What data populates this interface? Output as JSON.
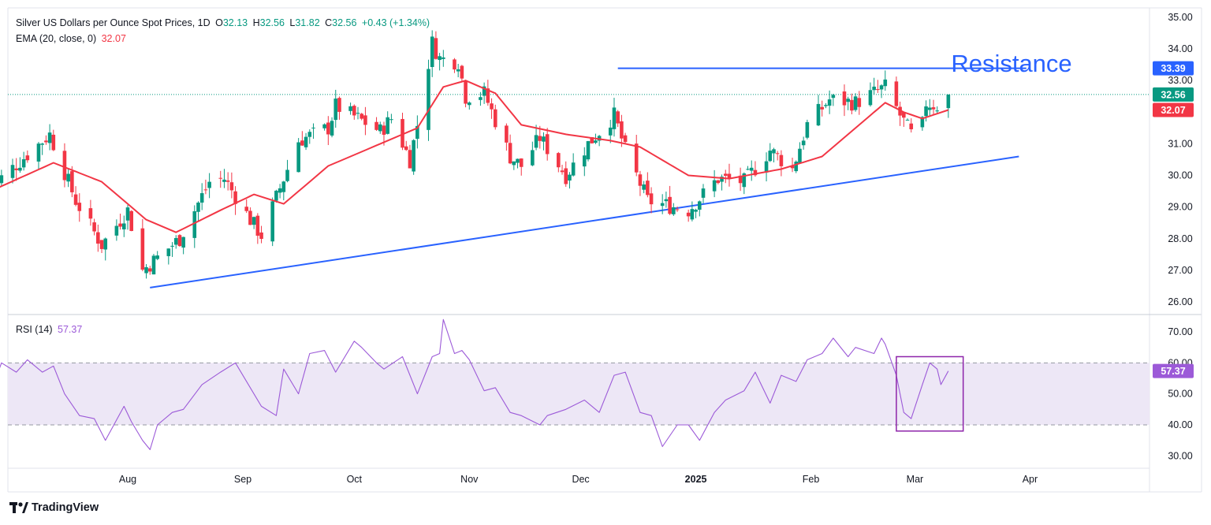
{
  "header": {
    "symbol": "Silver US Dollars per Ounce Spot Prices, 1D",
    "o_label": "O",
    "o_value": "32.13",
    "h_label": "H",
    "h_value": "32.56",
    "l_label": "L",
    "l_value": "31.82",
    "c_label": "C",
    "c_value": "32.56",
    "change": "+0.43 (+1.34%)",
    "ema_label": "EMA (20, close, 0)",
    "ema_value": "32.07",
    "rsi_label": "RSI (14)",
    "rsi_value": "57.37"
  },
  "annotation": "Resistance",
  "brand": "TradingView",
  "colors": {
    "up": "#089981",
    "down": "#f23645",
    "ema": "#f23645",
    "rsi": "#9c5ad8",
    "trendline": "#2962ff",
    "rsi_band": "#ede7f6"
  },
  "chart_data": [
    {
      "type": "candlestick",
      "title": "Silver US Dollars per Ounce Spot Prices, 1D",
      "ylim": [
        25.6,
        35.3
      ],
      "y_ticks": [
        "35.00",
        "34.00",
        "33.00",
        "32.00",
        "31.00",
        "30.00",
        "29.00",
        "28.00",
        "27.00",
        "26.00"
      ],
      "x_ticks": [
        {
          "label": "Aug",
          "date": "2024-08-01"
        },
        {
          "label": "Sep",
          "date": "2024-09-01"
        },
        {
          "label": "Oct",
          "date": "2024-10-01"
        },
        {
          "label": "Nov",
          "date": "2024-11-01"
        },
        {
          "label": "Dec",
          "date": "2024-12-01"
        },
        {
          "label": "2025",
          "date": "2025-01-01",
          "bold": true
        },
        {
          "label": "Feb",
          "date": "2025-02-01"
        },
        {
          "label": "Mar",
          "date": "2025-03-01"
        },
        {
          "label": "Apr",
          "date": "2025-04-01"
        }
      ],
      "price_labels": [
        {
          "text": "33.39",
          "value": 33.39,
          "color": "#2962ff"
        },
        {
          "text": "32.56",
          "value": 32.56,
          "color": "#089981"
        },
        {
          "text": "32.07",
          "value": 32.07,
          "color": "#f23645"
        }
      ],
      "last_close": 32.56,
      "resistance": {
        "from": "2024-12-11",
        "to": "2025-03-31",
        "value": 33.39
      },
      "support_trendline": {
        "from": "2024-08-07",
        "from_value": 26.45,
        "to": "2025-03-29",
        "to_value": 30.6
      },
      "anchors": [
        {
          "date": "2024-06-25",
          "close": 29.6
        },
        {
          "date": "2024-07-11",
          "close": 31.3
        },
        {
          "date": "2024-07-18",
          "close": 29.2
        },
        {
          "date": "2024-07-25",
          "close": 27.8
        },
        {
          "date": "2024-08-01",
          "close": 28.9
        },
        {
          "date": "2024-08-05",
          "close": 27.0
        },
        {
          "date": "2024-08-08",
          "close": 27.3
        },
        {
          "date": "2024-08-15",
          "close": 28.0
        },
        {
          "date": "2024-08-23",
          "close": 29.8
        },
        {
          "date": "2024-08-27",
          "close": 29.9
        },
        {
          "date": "2024-09-03",
          "close": 28.6
        },
        {
          "date": "2024-09-06",
          "close": 28.1
        },
        {
          "date": "2024-09-16",
          "close": 31.1
        },
        {
          "date": "2024-09-24",
          "close": 31.5
        },
        {
          "date": "2024-09-26",
          "close": 32.2
        },
        {
          "date": "2024-10-02",
          "close": 31.8
        },
        {
          "date": "2024-10-08",
          "close": 31.4
        },
        {
          "date": "2024-10-11",
          "close": 31.8
        },
        {
          "date": "2024-10-16",
          "close": 30.5
        },
        {
          "date": "2024-10-18",
          "close": 31.6
        },
        {
          "date": "2024-10-22",
          "close": 34.2
        },
        {
          "date": "2024-10-24",
          "close": 33.7
        },
        {
          "date": "2024-10-29",
          "close": 33.6
        },
        {
          "date": "2024-10-31",
          "close": 32.5
        },
        {
          "date": "2024-11-05",
          "close": 32.6
        },
        {
          "date": "2024-11-12",
          "close": 30.6
        },
        {
          "date": "2024-11-15",
          "close": 30.3
        },
        {
          "date": "2024-11-20",
          "close": 31.2
        },
        {
          "date": "2024-11-27",
          "close": 30.0
        },
        {
          "date": "2024-12-03",
          "close": 31.0
        },
        {
          "date": "2024-12-10",
          "close": 31.9
        },
        {
          "date": "2024-12-13",
          "close": 30.8
        },
        {
          "date": "2024-12-19",
          "close": 29.2
        },
        {
          "date": "2024-12-30",
          "close": 28.9
        },
        {
          "date": "2025-01-07",
          "close": 29.9
        },
        {
          "date": "2025-01-14",
          "close": 29.8
        },
        {
          "date": "2025-01-21",
          "close": 30.8
        },
        {
          "date": "2025-01-27",
          "close": 30.2
        },
        {
          "date": "2025-01-31",
          "close": 31.6
        },
        {
          "date": "2025-02-06",
          "close": 32.4
        },
        {
          "date": "2025-02-13",
          "close": 32.3
        },
        {
          "date": "2025-02-21",
          "close": 32.8
        },
        {
          "date": "2025-02-25",
          "close": 31.9
        },
        {
          "date": "2025-02-28",
          "close": 31.3
        },
        {
          "date": "2025-03-03",
          "close": 31.6
        },
        {
          "date": "2025-03-04",
          "close": 32.3
        },
        {
          "date": "2025-03-07",
          "close": 32.2
        },
        {
          "date": "2025-03-10",
          "close": 32.56
        }
      ],
      "ema_anchors": [
        {
          "date": "2024-06-25",
          "value": 29.5
        },
        {
          "date": "2024-07-12",
          "value": 30.4
        },
        {
          "date": "2024-07-25",
          "value": 29.8
        },
        {
          "date": "2024-08-06",
          "value": 28.6
        },
        {
          "date": "2024-08-14",
          "value": 28.2
        },
        {
          "date": "2024-08-26",
          "value": 28.9
        },
        {
          "date": "2024-09-04",
          "value": 29.4
        },
        {
          "date": "2024-09-12",
          "value": 29.1
        },
        {
          "date": "2024-09-24",
          "value": 30.3
        },
        {
          "date": "2024-10-08",
          "value": 31.0
        },
        {
          "date": "2024-10-18",
          "value": 31.5
        },
        {
          "date": "2024-10-25",
          "value": 32.8
        },
        {
          "date": "2024-10-31",
          "value": 33.0
        },
        {
          "date": "2024-11-08",
          "value": 32.6
        },
        {
          "date": "2024-11-15",
          "value": 31.6
        },
        {
          "date": "2024-11-27",
          "value": 31.3
        },
        {
          "date": "2024-12-09",
          "value": 31.1
        },
        {
          "date": "2024-12-17",
          "value": 30.9
        },
        {
          "date": "2024-12-30",
          "value": 30.0
        },
        {
          "date": "2025-01-10",
          "value": 29.9
        },
        {
          "date": "2025-01-24",
          "value": 30.2
        },
        {
          "date": "2025-02-04",
          "value": 30.6
        },
        {
          "date": "2025-02-13",
          "value": 31.5
        },
        {
          "date": "2025-02-21",
          "value": 32.3
        },
        {
          "date": "2025-02-26",
          "value": 32.0
        },
        {
          "date": "2025-03-03",
          "value": 31.8
        },
        {
          "date": "2025-03-10",
          "value": 32.07
        }
      ]
    },
    {
      "type": "line",
      "title": "RSI (14)",
      "ylim": [
        26.0,
        75.6
      ],
      "y_ticks": [
        "70.00",
        "60.00",
        "50.00",
        "40.00",
        "30.00"
      ],
      "band": [
        40,
        60
      ],
      "last_label": {
        "text": "57.37",
        "value": 57.37
      },
      "highlight_box": {
        "from": "2025-02-24",
        "to": "2025-03-14",
        "y_from": 38,
        "y_to": 62
      },
      "anchors": [
        {
          "date": "2024-06-25",
          "value": 50
        },
        {
          "date": "2024-06-28",
          "value": 60
        },
        {
          "date": "2024-07-02",
          "value": 57
        },
        {
          "date": "2024-07-05",
          "value": 61
        },
        {
          "date": "2024-07-09",
          "value": 57
        },
        {
          "date": "2024-07-12",
          "value": 59
        },
        {
          "date": "2024-07-15",
          "value": 50
        },
        {
          "date": "2024-07-19",
          "value": 43
        },
        {
          "date": "2024-07-23",
          "value": 42
        },
        {
          "date": "2024-07-26",
          "value": 35
        },
        {
          "date": "2024-07-31",
          "value": 46
        },
        {
          "date": "2024-08-02",
          "value": 41
        },
        {
          "date": "2024-08-05",
          "value": 35
        },
        {
          "date": "2024-08-07",
          "value": 32
        },
        {
          "date": "2024-08-09",
          "value": 40
        },
        {
          "date": "2024-08-13",
          "value": 44
        },
        {
          "date": "2024-08-16",
          "value": 45
        },
        {
          "date": "2024-08-21",
          "value": 53
        },
        {
          "date": "2024-08-26",
          "value": 57
        },
        {
          "date": "2024-08-30",
          "value": 60
        },
        {
          "date": "2024-09-06",
          "value": 46
        },
        {
          "date": "2024-09-10",
          "value": 43
        },
        {
          "date": "2024-09-12",
          "value": 58
        },
        {
          "date": "2024-09-16",
          "value": 50
        },
        {
          "date": "2024-09-19",
          "value": 63
        },
        {
          "date": "2024-09-23",
          "value": 64
        },
        {
          "date": "2024-09-26",
          "value": 57
        },
        {
          "date": "2024-10-01",
          "value": 67
        },
        {
          "date": "2024-10-03",
          "value": 65
        },
        {
          "date": "2024-10-07",
          "value": 60
        },
        {
          "date": "2024-10-09",
          "value": 58
        },
        {
          "date": "2024-10-14",
          "value": 62
        },
        {
          "date": "2024-10-18",
          "value": 50
        },
        {
          "date": "2024-10-22",
          "value": 62
        },
        {
          "date": "2024-10-24",
          "value": 63
        },
        {
          "date": "2024-10-25",
          "value": 74
        },
        {
          "date": "2024-10-28",
          "value": 63
        },
        {
          "date": "2024-10-30",
          "value": 64
        },
        {
          "date": "2024-11-01",
          "value": 61
        },
        {
          "date": "2024-11-05",
          "value": 51
        },
        {
          "date": "2024-11-08",
          "value": 52
        },
        {
          "date": "2024-11-12",
          "value": 44
        },
        {
          "date": "2024-11-15",
          "value": 43
        },
        {
          "date": "2024-11-20",
          "value": 40
        },
        {
          "date": "2024-11-22",
          "value": 43
        },
        {
          "date": "2024-11-27",
          "value": 45
        },
        {
          "date": "2024-12-02",
          "value": 48
        },
        {
          "date": "2024-12-06",
          "value": 44
        },
        {
          "date": "2024-12-10",
          "value": 56
        },
        {
          "date": "2024-12-13",
          "value": 57
        },
        {
          "date": "2024-12-17",
          "value": 44
        },
        {
          "date": "2024-12-20",
          "value": 43
        },
        {
          "date": "2024-12-23",
          "value": 33
        },
        {
          "date": "2024-12-27",
          "value": 40
        },
        {
          "date": "2024-12-30",
          "value": 40
        },
        {
          "date": "2025-01-02",
          "value": 35
        },
        {
          "date": "2025-01-06",
          "value": 44
        },
        {
          "date": "2025-01-09",
          "value": 48
        },
        {
          "date": "2025-01-14",
          "value": 51
        },
        {
          "date": "2025-01-17",
          "value": 57
        },
        {
          "date": "2025-01-21",
          "value": 47
        },
        {
          "date": "2025-01-24",
          "value": 56
        },
        {
          "date": "2025-01-28",
          "value": 54
        },
        {
          "date": "2025-01-31",
          "value": 61
        },
        {
          "date": "2025-02-04",
          "value": 63
        },
        {
          "date": "2025-02-07",
          "value": 68
        },
        {
          "date": "2025-02-11",
          "value": 62
        },
        {
          "date": "2025-02-13",
          "value": 65
        },
        {
          "date": "2025-02-18",
          "value": 63
        },
        {
          "date": "2025-02-20",
          "value": 68
        },
        {
          "date": "2025-02-21",
          "value": 66
        },
        {
          "date": "2025-02-24",
          "value": 56
        },
        {
          "date": "2025-02-26",
          "value": 44
        },
        {
          "date": "2025-02-28",
          "value": 42
        },
        {
          "date": "2025-03-03",
          "value": 53
        },
        {
          "date": "2025-03-05",
          "value": 60
        },
        {
          "date": "2025-03-07",
          "value": 58
        },
        {
          "date": "2025-03-08",
          "value": 53
        },
        {
          "date": "2025-03-10",
          "value": 57.37
        }
      ]
    }
  ]
}
